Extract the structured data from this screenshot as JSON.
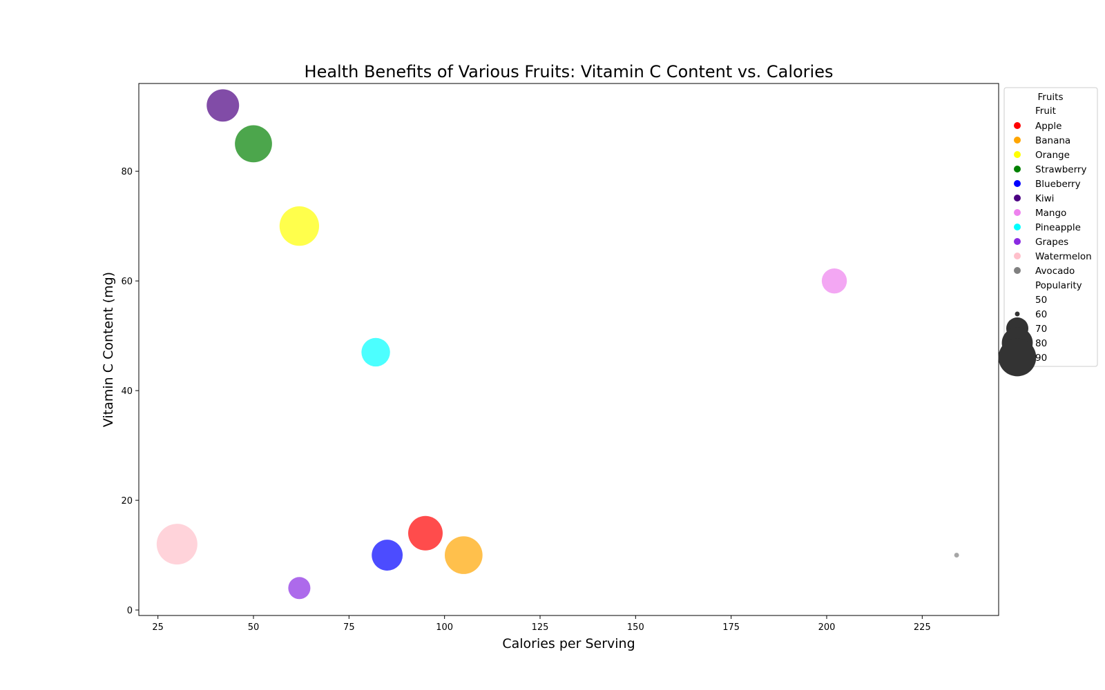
{
  "chart_data": {
    "type": "scatter",
    "title": "Health Benefits of Various Fruits: Vitamin C Content vs. Calories",
    "xlabel": "Calories per Serving",
    "ylabel": "Vitamin C Content (mg)",
    "xlim": [
      20,
      245
    ],
    "ylim": [
      -1,
      96
    ],
    "xticks": [
      25,
      50,
      75,
      100,
      125,
      150,
      175,
      200,
      225
    ],
    "yticks": [
      0,
      20,
      40,
      60,
      80
    ],
    "grid": false,
    "points": [
      {
        "fruit": "Apple",
        "calories": 95,
        "vitamin_c": 14,
        "popularity": 85,
        "color": "#ff0000"
      },
      {
        "fruit": "Banana",
        "calories": 105,
        "vitamin_c": 10,
        "popularity": 90,
        "color": "#ffa500"
      },
      {
        "fruit": "Orange",
        "calories": 62,
        "vitamin_c": 70,
        "popularity": 93,
        "color": "#ffff00"
      },
      {
        "fruit": "Strawberry",
        "calories": 50,
        "vitamin_c": 85,
        "popularity": 89,
        "color": "#008000"
      },
      {
        "fruit": "Blueberry",
        "calories": 85,
        "vitamin_c": 10,
        "popularity": 80,
        "color": "#0000ff"
      },
      {
        "fruit": "Kiwi",
        "calories": 42,
        "vitamin_c": 92,
        "popularity": 82,
        "color": "#4b0082"
      },
      {
        "fruit": "Mango",
        "calories": 202,
        "vitamin_c": 60,
        "popularity": 73,
        "color": "#ee82ee"
      },
      {
        "fruit": "Pineapple",
        "calories": 82,
        "vitamin_c": 47,
        "popularity": 77,
        "color": "#00ffff"
      },
      {
        "fruit": "Grapes",
        "calories": 62,
        "vitamin_c": 4,
        "popularity": 70,
        "color": "#8a2be2"
      },
      {
        "fruit": "Watermelon",
        "calories": 30,
        "vitamin_c": 12,
        "popularity": 95,
        "color": "#ffc0cb"
      },
      {
        "fruit": "Avocado",
        "calories": 234,
        "vitamin_c": 10,
        "popularity": 60,
        "color": "#808080"
      }
    ],
    "legend": {
      "title": "Fruits",
      "placement": "outside-right-top",
      "hue_title": "Fruit",
      "size_title": "Popularity",
      "size_entries": [
        50,
        60,
        70,
        80,
        90
      ],
      "size_marker_color": "#333333"
    }
  }
}
